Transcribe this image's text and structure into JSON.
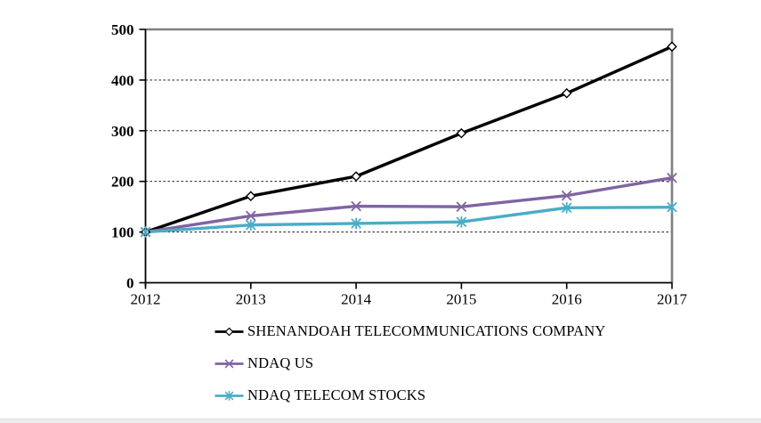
{
  "page": {
    "background": "#ffffff",
    "title": ""
  },
  "chart_data": {
    "type": "line",
    "title": "",
    "xlabel": "",
    "ylabel": "",
    "x_labels": [
      "2012",
      "2013",
      "2014",
      "2015",
      "2016",
      "2017"
    ],
    "y_ticks": [
      0,
      100,
      200,
      300,
      400,
      500
    ],
    "y_tick_labels": [
      "0",
      "100",
      "200",
      "300",
      "400",
      "500"
    ],
    "ylim": [
      0,
      500
    ],
    "grid": "horizontal dashed black gridlines at 100-400; solid gray border on top and right of plot area",
    "legend_position": "below chart, left-aligned, stacked vertically",
    "axis_color": "#000000",
    "gridline_color": "#000000",
    "plot_border_color": "#7f7f7f",
    "series": [
      {
        "name": "SHENANDOAH TELECOMMUNICATIONS COMPANY",
        "color": "#000000",
        "marker": "diamond",
        "values": [
          100,
          171,
          210,
          295,
          374,
          466
        ]
      },
      {
        "name": "NDAQ US",
        "color": "#8064A2",
        "marker": "x",
        "values": [
          100,
          132,
          151,
          150,
          172,
          207
        ]
      },
      {
        "name": "NDAQ TELECOM STOCKS",
        "color": "#4BACC6",
        "marker": "asterisk",
        "values": [
          100,
          114,
          117,
          120,
          148,
          149
        ]
      }
    ]
  }
}
